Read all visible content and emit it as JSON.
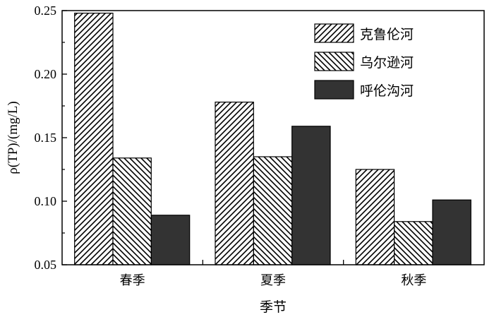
{
  "chart_data": {
    "type": "bar",
    "categories": [
      "春季",
      "夏季",
      "秋季"
    ],
    "series": [
      {
        "name": "克鲁伦河",
        "values": [
          0.248,
          0.178,
          0.125
        ],
        "pattern": "hatch-forward"
      },
      {
        "name": "乌尔逊河",
        "values": [
          0.134,
          0.135,
          0.084
        ],
        "pattern": "hatch-backward"
      },
      {
        "name": "呼伦沟河",
        "values": [
          0.089,
          0.159,
          0.101
        ],
        "pattern": "solid",
        "color": "#333333"
      }
    ],
    "xlabel": "季节",
    "ylabel": "ρ(TP)/(mg/L)",
    "ylim": [
      0.05,
      0.25
    ],
    "yticks": [
      "0.05",
      "0.10",
      "0.15",
      "0.20",
      "0.25"
    ],
    "legend_position": "top-right",
    "grid": false
  }
}
